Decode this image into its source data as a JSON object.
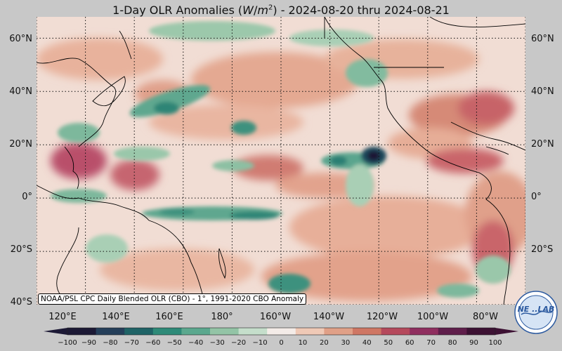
{
  "title": "1-Day OLR Anomalies (W/m²) - 2024-08-20 thru 2024-08-21",
  "attribution": "NOAA/PSL CPC Daily Blended OLR (CBO) - 1°, 1991-2020 CBO Anomaly",
  "latitude_labels": [
    "60°N",
    "40°N",
    "20°N",
    "0°",
    "20°S",
    "40°S"
  ],
  "longitude_labels": [
    "120°E",
    "140°E",
    "160°E",
    "180°",
    "160°W",
    "140°W",
    "120°W",
    "100°W",
    "80°W"
  ],
  "colorbar": {
    "ticks": [
      "−100",
      "−90",
      "−80",
      "−70",
      "−60",
      "−50",
      "−40",
      "−30",
      "−20",
      "−10",
      "0",
      "10",
      "20",
      "30",
      "40",
      "50",
      "60",
      "70",
      "80",
      "90",
      "100"
    ],
    "colors": [
      "#1c1935",
      "#253f5a",
      "#1f6366",
      "#2e8a78",
      "#5ba88e",
      "#93c4a6",
      "#c5decb",
      "#f4ece8",
      "#efc9b6",
      "#e0a087",
      "#cf7764",
      "#b5495c",
      "#8f2e5f",
      "#5f1e4b",
      "#3c1133"
    ],
    "unit": "W/m²"
  },
  "map": {
    "extent_lon": [
      100,
      300
    ],
    "extent_lat": [
      -40,
      68
    ],
    "graticule_lon_step": 20,
    "graticule_lat_step": 20
  },
  "logo": {
    "text": "NE ..LAB",
    "ring_text": "PHYSICAL SCIENCES LABORATORY"
  }
}
